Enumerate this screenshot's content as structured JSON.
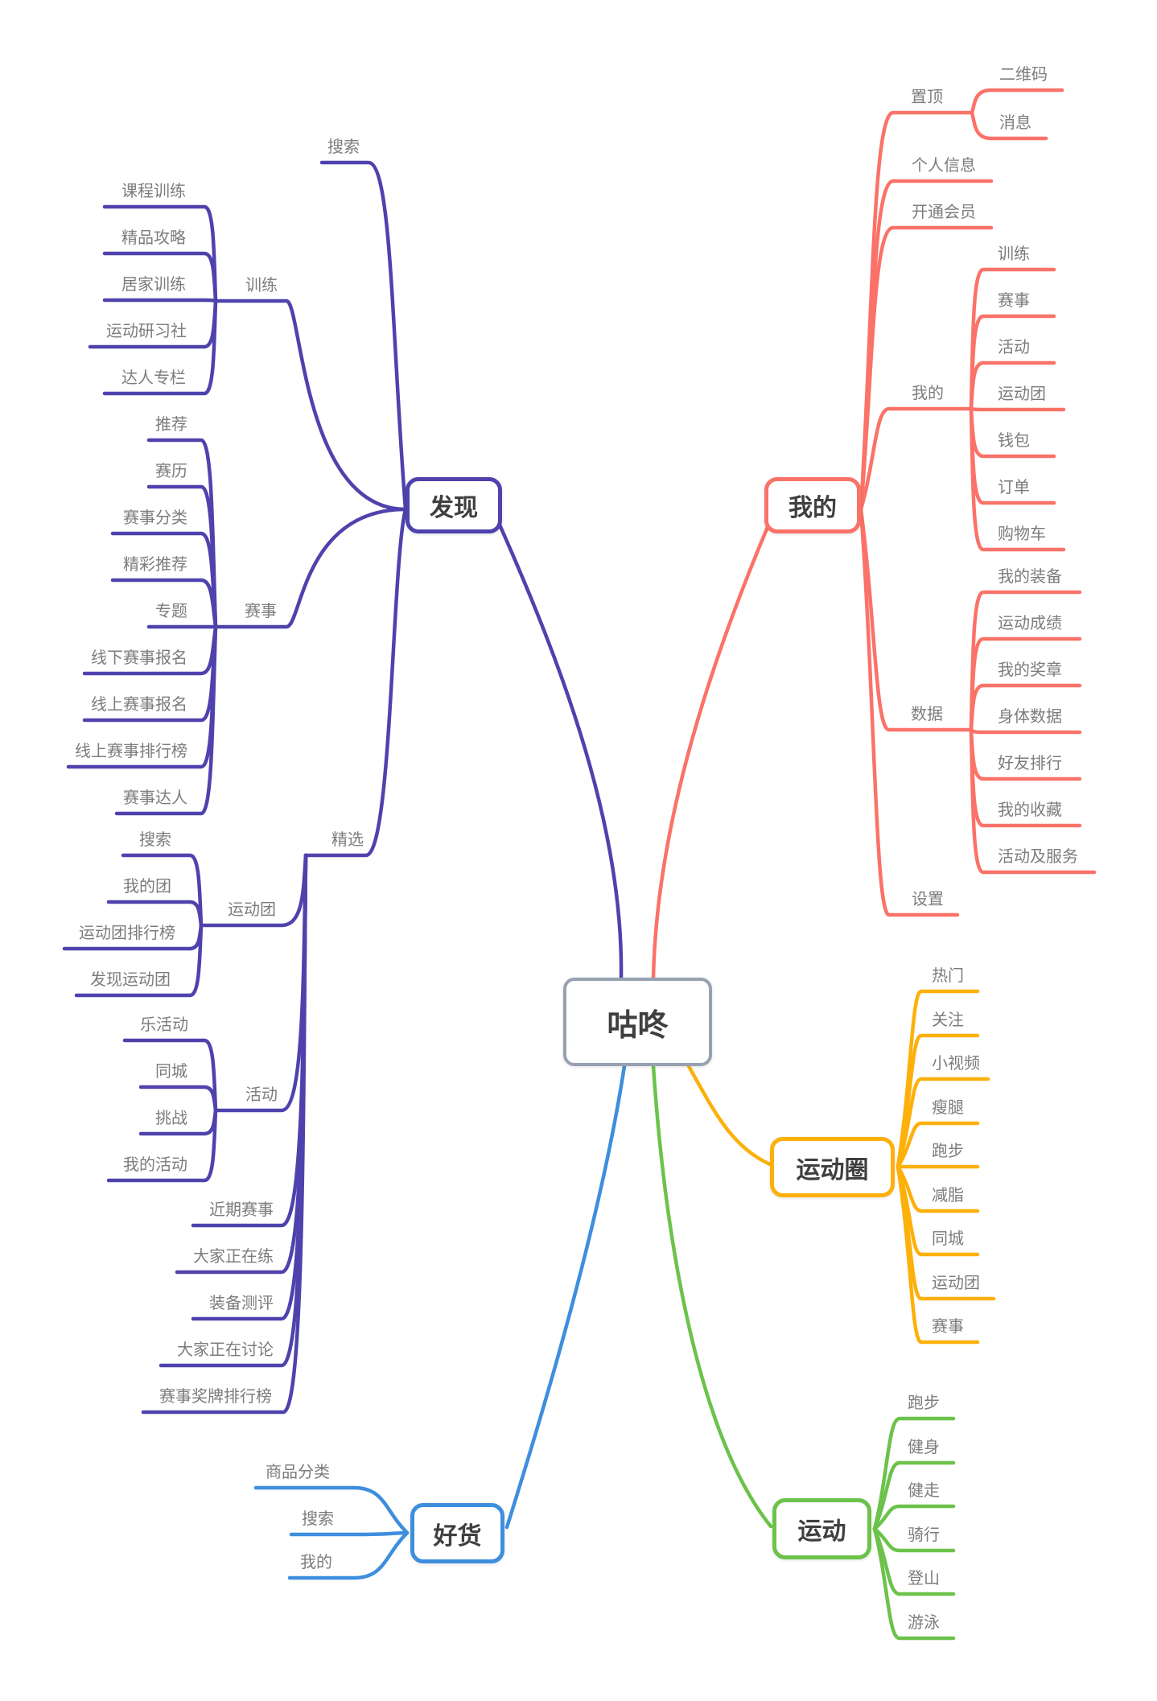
{
  "root": {
    "label": "咕咚"
  },
  "branches": {
    "discover": {
      "label": "发现",
      "color": "#4F42AD",
      "search": "搜索",
      "train": {
        "label": "训练",
        "children": [
          "课程训练",
          "精品攻略",
          "居家训练",
          "运动研习社",
          "达人专栏"
        ]
      },
      "race": {
        "label": "赛事",
        "children": [
          "推荐",
          "赛历",
          "赛事分类",
          "精彩推荐",
          "专题",
          "线下赛事报名",
          "线上赛事报名",
          "线上赛事排行榜",
          "赛事达人"
        ]
      },
      "featured": {
        "label": "精选",
        "group": {
          "label": "运动团",
          "children": [
            "搜索",
            "我的团",
            "运动团排行榜",
            "发现运动团"
          ]
        },
        "activity": {
          "label": "活动",
          "children": [
            "乐活动",
            "同城",
            "挑战",
            "我的活动"
          ]
        },
        "items": [
          "近期赛事",
          "大家正在练",
          "装备测评",
          "大家正在讨论",
          "赛事奖牌排行榜"
        ]
      }
    },
    "mine": {
      "label": "我的",
      "color": "#FA7268",
      "pinned": {
        "label": "置顶",
        "children": [
          "二维码",
          "消息"
        ]
      },
      "profile": "个人信息",
      "vip": "开通会员",
      "my": {
        "label": "我的",
        "children": [
          "训练",
          "赛事",
          "活动",
          "运动团",
          "钱包",
          "订单",
          "购物车"
        ]
      },
      "data": {
        "label": "数据",
        "children": [
          "我的装备",
          "运动成绩",
          "我的奖章",
          "身体数据",
          "好友排行",
          "我的收藏",
          "活动及服务"
        ]
      },
      "settings": "设置"
    },
    "circle": {
      "label": "运动圈",
      "color": "#FDB00A",
      "children": [
        "热门",
        "关注",
        "小视频",
        "瘦腿",
        "跑步",
        "减脂",
        "同城",
        "运动团",
        "赛事"
      ]
    },
    "goods": {
      "label": "好货",
      "color": "#3E8EDE",
      "children": [
        "商品分类",
        "搜索",
        "我的"
      ]
    },
    "sport": {
      "label": "运动",
      "color": "#6CC24A",
      "children": [
        "跑步",
        "健身",
        "健走",
        "骑行",
        "登山",
        "游泳"
      ]
    }
  }
}
